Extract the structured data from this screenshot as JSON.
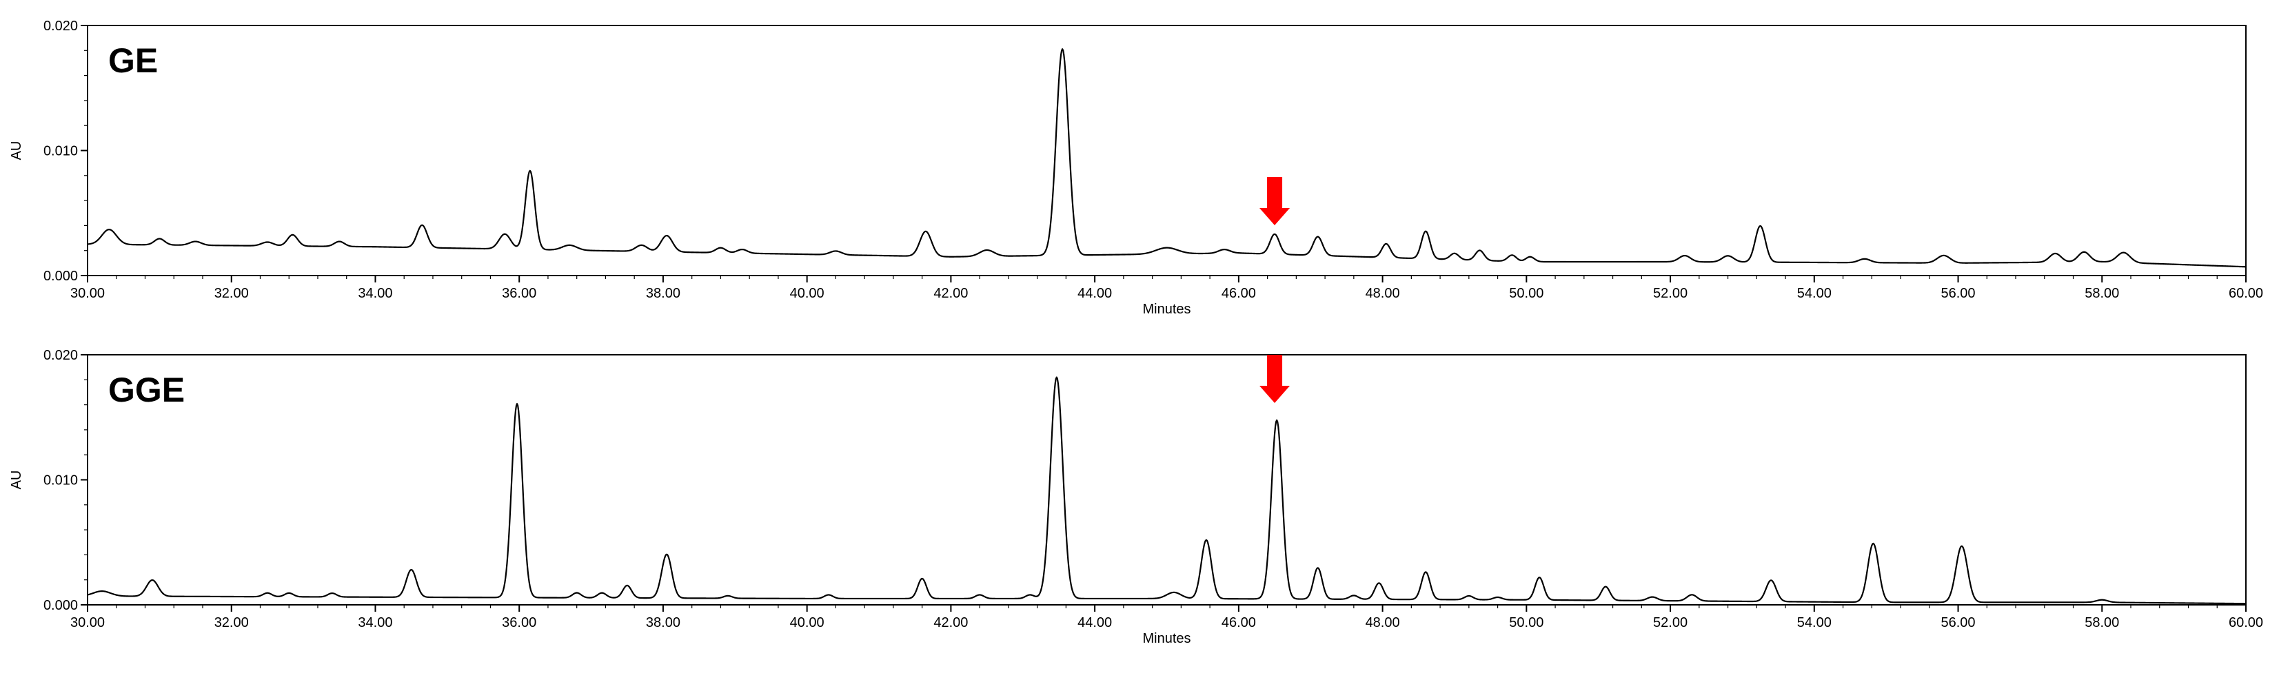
{
  "chart_data": [
    {
      "type": "line",
      "label": "GE",
      "xlabel": "Minutes",
      "ylabel": "AU",
      "xlim": [
        30,
        60
      ],
      "ylim": [
        0,
        0.02
      ],
      "x_ticks": [
        "30.00",
        "32.00",
        "34.00",
        "36.00",
        "38.00",
        "40.00",
        "42.00",
        "44.00",
        "46.00",
        "48.00",
        "50.00",
        "52.00",
        "54.00",
        "56.00",
        "58.00",
        "60.00"
      ],
      "y_ticks": [
        "0.000",
        "0.010",
        "0.020"
      ],
      "arrow_x": 46.5,
      "baseline": [
        [
          30,
          0.0025
        ],
        [
          34,
          0.0023
        ],
        [
          36,
          0.0021
        ],
        [
          40,
          0.0017
        ],
        [
          42,
          0.0015
        ],
        [
          46,
          0.0018
        ],
        [
          50,
          0.0011
        ],
        [
          52,
          0.0011
        ],
        [
          56,
          0.001
        ],
        [
          58,
          0.0011
        ],
        [
          60,
          0.0007
        ]
      ],
      "peaks": [
        [
          30.3,
          0.0012,
          0.1
        ],
        [
          31.0,
          0.0005,
          0.07
        ],
        [
          31.5,
          0.0003,
          0.08
        ],
        [
          32.5,
          0.0003,
          0.08
        ],
        [
          32.85,
          0.0009,
          0.07
        ],
        [
          33.5,
          0.0004,
          0.07
        ],
        [
          34.65,
          0.0018,
          0.07
        ],
        [
          35.8,
          0.0012,
          0.08
        ],
        [
          36.15,
          0.0063,
          0.065
        ],
        [
          36.7,
          0.0004,
          0.1
        ],
        [
          37.7,
          0.0005,
          0.08
        ],
        [
          38.05,
          0.0013,
          0.08
        ],
        [
          38.8,
          0.0004,
          0.07
        ],
        [
          39.1,
          0.0003,
          0.07
        ],
        [
          40.4,
          0.0003,
          0.08
        ],
        [
          41.65,
          0.002,
          0.08
        ],
        [
          42.5,
          0.0005,
          0.1
        ],
        [
          43.55,
          0.0165,
          0.085
        ],
        [
          45.0,
          0.0005,
          0.15
        ],
        [
          45.8,
          0.0003,
          0.08
        ],
        [
          46.5,
          0.0016,
          0.065
        ],
        [
          47.1,
          0.0015,
          0.065
        ],
        [
          48.05,
          0.0011,
          0.06
        ],
        [
          48.6,
          0.0022,
          0.06
        ],
        [
          49.0,
          0.0005,
          0.06
        ],
        [
          49.35,
          0.0008,
          0.06
        ],
        [
          49.8,
          0.0005,
          0.06
        ],
        [
          50.05,
          0.0004,
          0.06
        ],
        [
          52.2,
          0.0005,
          0.08
        ],
        [
          52.8,
          0.0005,
          0.08
        ],
        [
          53.25,
          0.0029,
          0.07
        ],
        [
          54.7,
          0.0003,
          0.08
        ],
        [
          55.8,
          0.0006,
          0.09
        ],
        [
          57.35,
          0.0007,
          0.08
        ],
        [
          57.75,
          0.0008,
          0.08
        ],
        [
          58.3,
          0.0008,
          0.09
        ]
      ]
    },
    {
      "type": "line",
      "label": "GGE",
      "xlabel": "Minutes",
      "ylabel": "AU",
      "xlim": [
        30,
        60
      ],
      "ylim": [
        0,
        0.02
      ],
      "x_ticks": [
        "30.00",
        "32.00",
        "34.00",
        "36.00",
        "38.00",
        "40.00",
        "42.00",
        "44.00",
        "46.00",
        "48.00",
        "50.00",
        "52.00",
        "54.00",
        "56.00",
        "58.00",
        "60.00"
      ],
      "y_ticks": [
        "0.000",
        "0.010",
        "0.020"
      ],
      "arrow_x": 46.5,
      "baseline": [
        [
          30,
          0.0007
        ],
        [
          35,
          0.0006
        ],
        [
          40,
          0.0005
        ],
        [
          45,
          0.0005
        ],
        [
          50,
          0.0004
        ],
        [
          55,
          0.0002
        ],
        [
          58,
          0.0002
        ],
        [
          60,
          0.0001
        ]
      ],
      "peaks": [
        [
          30.2,
          0.0004,
          0.12
        ],
        [
          30.9,
          0.0013,
          0.08
        ],
        [
          32.5,
          0.0003,
          0.06
        ],
        [
          32.8,
          0.0003,
          0.06
        ],
        [
          33.4,
          0.0003,
          0.06
        ],
        [
          34.5,
          0.0022,
          0.07
        ],
        [
          35.97,
          0.0155,
          0.075
        ],
        [
          36.8,
          0.0004,
          0.06
        ],
        [
          37.15,
          0.0004,
          0.06
        ],
        [
          37.5,
          0.001,
          0.06
        ],
        [
          38.05,
          0.0035,
          0.07
        ],
        [
          38.9,
          0.0002,
          0.06
        ],
        [
          40.3,
          0.0003,
          0.06
        ],
        [
          41.6,
          0.0016,
          0.06
        ],
        [
          42.4,
          0.0003,
          0.06
        ],
        [
          43.1,
          0.0003,
          0.06
        ],
        [
          43.47,
          0.0177,
          0.085
        ],
        [
          45.1,
          0.0005,
          0.1
        ],
        [
          45.55,
          0.0047,
          0.07
        ],
        [
          46.53,
          0.0143,
          0.075
        ],
        [
          47.1,
          0.0025,
          0.06
        ],
        [
          47.6,
          0.0003,
          0.06
        ],
        [
          47.95,
          0.0013,
          0.06
        ],
        [
          48.6,
          0.0022,
          0.06
        ],
        [
          49.2,
          0.0003,
          0.06
        ],
        [
          49.6,
          0.0002,
          0.06
        ],
        [
          50.18,
          0.0018,
          0.06
        ],
        [
          51.1,
          0.0011,
          0.06
        ],
        [
          51.75,
          0.0003,
          0.07
        ],
        [
          52.3,
          0.0005,
          0.07
        ],
        [
          53.4,
          0.0017,
          0.07
        ],
        [
          54.82,
          0.0047,
          0.075
        ],
        [
          56.05,
          0.0045,
          0.08
        ],
        [
          58.0,
          0.0002,
          0.08
        ]
      ]
    }
  ]
}
